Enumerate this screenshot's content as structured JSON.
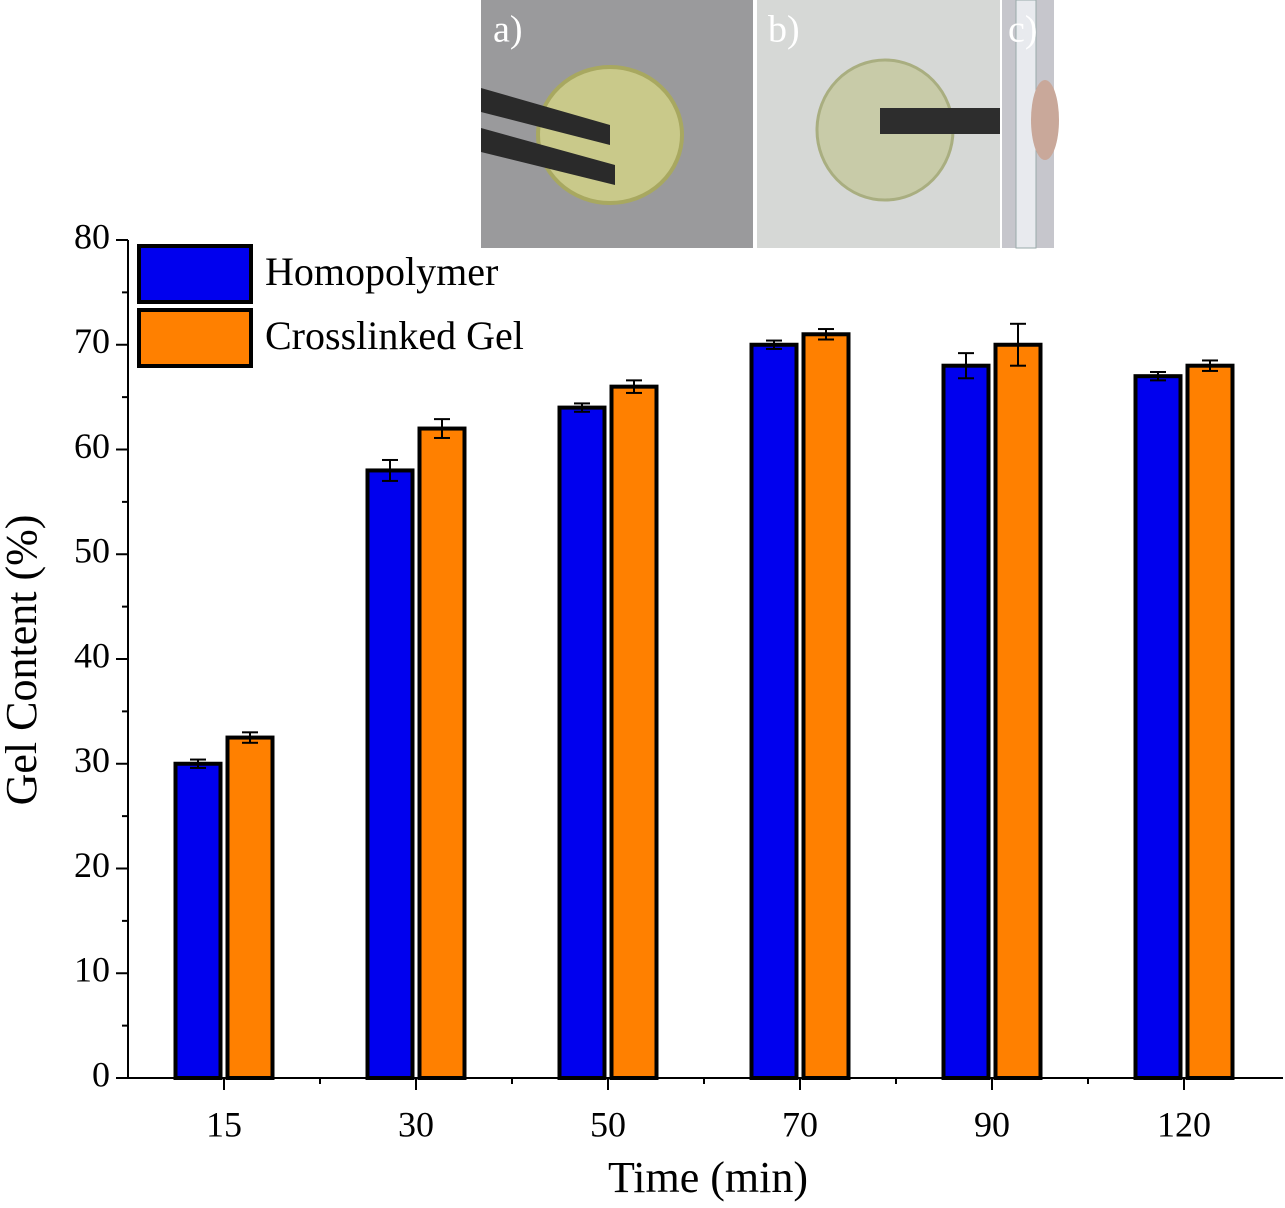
{
  "chart_data": {
    "type": "bar",
    "xlabel": "Time (min)",
    "ylabel": "Gel Content (%)",
    "categories": [
      "15",
      "30",
      "50",
      "70",
      "90",
      "120"
    ],
    "series": [
      {
        "name": "Homopolymer",
        "color": "#0000ee",
        "values": [
          30,
          58,
          64,
          70,
          68,
          67
        ],
        "errors": [
          0.4,
          1,
          0.4,
          0.4,
          1.2,
          0.4
        ]
      },
      {
        "name": "Crosslinked Gel",
        "color": "#ff8000",
        "values": [
          32.5,
          62,
          66,
          71,
          70,
          68
        ],
        "errors": [
          0.5,
          0.9,
          0.6,
          0.5,
          2,
          0.5
        ]
      }
    ],
    "ylim": [
      0,
      80
    ],
    "yticks": [
      0,
      10,
      20,
      30,
      40,
      50,
      60,
      70,
      80
    ],
    "legend": "upper-left",
    "annotations": [
      "a)",
      "b)",
      "c)"
    ]
  }
}
